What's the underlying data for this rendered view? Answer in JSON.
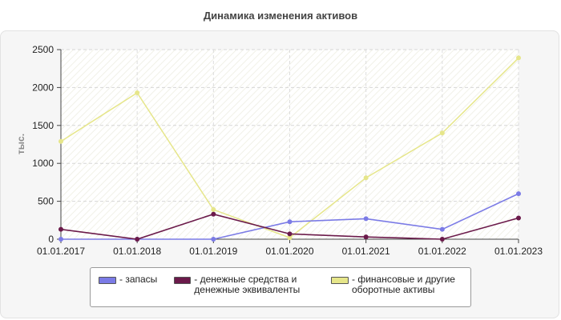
{
  "chart_data": {
    "type": "line",
    "title": "Динамика изменения активов",
    "ylabel": "тыс.",
    "xlabel": "",
    "categories": [
      "01.01.2017",
      "01.01.2018",
      "01.01.2019",
      "01.01.2020",
      "01.01.2021",
      "01.01.2022",
      "01.01.2023"
    ],
    "ylim": [
      0,
      2500
    ],
    "yticks": [
      0,
      500,
      1000,
      1500,
      2000,
      2500
    ],
    "grid": true,
    "legend_position": "bottom",
    "series": [
      {
        "name": "- запасы",
        "color": "#7b7be6",
        "values": [
          0,
          0,
          0,
          230,
          270,
          130,
          600
        ]
      },
      {
        "name": "- денежные средства и денежные эквиваленты",
        "color": "#6b1a4a",
        "values": [
          130,
          0,
          330,
          70,
          30,
          0,
          280
        ]
      },
      {
        "name": "- финансовые и другие оборотные активы",
        "color": "#e6e68a",
        "values": [
          1290,
          1930,
          390,
          20,
          810,
          1400,
          2390
        ]
      }
    ]
  }
}
